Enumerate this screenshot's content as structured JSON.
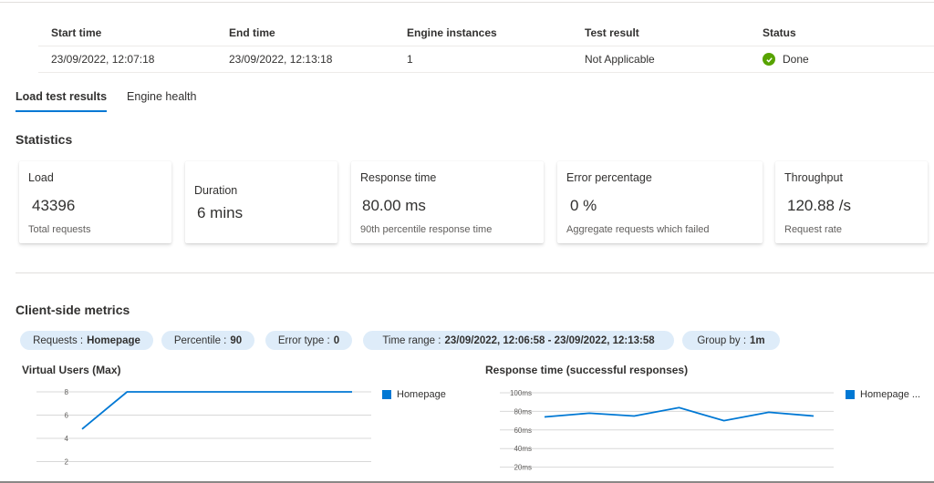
{
  "run": {
    "headers": [
      "Start time",
      "End time",
      "Engine instances",
      "Test result",
      "Status"
    ],
    "values": [
      "23/09/2022, 12:07:18",
      "23/09/2022, 12:13:18",
      "1",
      "Not Applicable",
      "Done"
    ],
    "status_color": "#57a300"
  },
  "tabs": [
    "Load test results",
    "Engine health"
  ],
  "statistics": {
    "title": "Statistics",
    "cards": [
      {
        "label": "Load",
        "value": "43396",
        "sub": "Total requests"
      },
      {
        "label": "Duration",
        "value": "6 mins",
        "sub": ""
      },
      {
        "label": "Response time",
        "value": "80.00 ms",
        "sub": "90th percentile response time"
      },
      {
        "label": "Error percentage",
        "value": "0 %",
        "sub": "Aggregate requests which failed"
      },
      {
        "label": "Throughput",
        "value": "120.88 /s",
        "sub": "Request rate"
      }
    ]
  },
  "client_metrics": {
    "title": "Client-side metrics",
    "filters": [
      {
        "label": "Requests :",
        "value": "Homepage"
      },
      {
        "label": "Percentile :",
        "value": "90"
      },
      {
        "label": "Error type :",
        "value": "0"
      },
      {
        "label": "Time range :",
        "value": "23/09/2022, 12:06:58 - 23/09/2022, 12:13:58"
      },
      {
        "label": "Group by :",
        "value": "1m"
      }
    ]
  },
  "accent_color": "#0078d4",
  "chart_data": [
    {
      "type": "line",
      "title": "Virtual Users (Max)",
      "y_ticks": [
        "8",
        "6",
        "4",
        "2"
      ],
      "ylim": [
        2,
        8
      ],
      "x": [
        0,
        1,
        2,
        3,
        4,
        5,
        6
      ],
      "series": [
        {
          "name": "Homepage",
          "values": [
            4.8,
            8,
            8,
            8,
            8,
            8,
            8
          ]
        }
      ],
      "legend": "right",
      "grid": true
    },
    {
      "type": "line",
      "title": "Response time (successful responses)",
      "y_ticks": [
        "100ms",
        "80ms",
        "60ms",
        "40ms",
        "20ms"
      ],
      "ylim": [
        20,
        100
      ],
      "x": [
        0,
        1,
        2,
        3,
        4,
        5,
        6
      ],
      "series": [
        {
          "name": "Homepage ...",
          "values": [
            74,
            78,
            75,
            84,
            70,
            79,
            75
          ]
        }
      ],
      "legend": "right",
      "grid": true
    }
  ]
}
